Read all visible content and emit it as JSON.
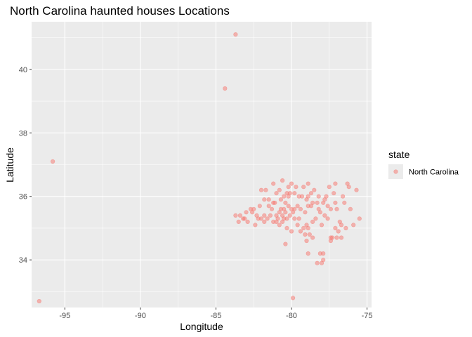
{
  "chart_data": {
    "type": "scatter",
    "title": "North Carolina haunted houses Locations",
    "xlabel": "Longitude",
    "ylabel": "Latitude",
    "xlim": [
      -97.2,
      -74.7
    ],
    "ylim": [
      32.5,
      41.5
    ],
    "x_ticks": [
      -95,
      -90,
      -85,
      -80,
      -75
    ],
    "y_ticks": [
      34,
      36,
      38,
      40
    ],
    "x_tick_labels": [
      "-95",
      "-90",
      "-85",
      "-80",
      "-75"
    ],
    "y_tick_labels": [
      "34",
      "36",
      "38",
      "40"
    ],
    "grid": true,
    "legend": {
      "title": "state",
      "entries": [
        "North Carolina"
      ],
      "position": "right"
    },
    "colors": {
      "point": "#F8766D",
      "panel": "#EBEBEB",
      "grid": "#FFFFFF"
    },
    "series": [
      {
        "name": "North Carolina",
        "points": [
          [
            -83.7,
            41.1
          ],
          [
            -84.4,
            39.4
          ],
          [
            -95.8,
            37.1
          ],
          [
            -96.7,
            32.7
          ],
          [
            -79.9,
            32.8
          ],
          [
            -80.6,
            36.5
          ],
          [
            -80.0,
            36.4
          ],
          [
            -79.7,
            36.3
          ],
          [
            -79.2,
            36.3
          ],
          [
            -78.9,
            36.4
          ],
          [
            -78.5,
            36.2
          ],
          [
            -77.5,
            36.3
          ],
          [
            -77.1,
            36.4
          ],
          [
            -76.3,
            36.4
          ],
          [
            -76.2,
            36.3
          ],
          [
            -75.7,
            36.2
          ],
          [
            -76.6,
            36.0
          ],
          [
            -77.8,
            35.9
          ],
          [
            -78.3,
            35.8
          ],
          [
            -78.6,
            35.8
          ],
          [
            -78.9,
            36.0
          ],
          [
            -79.0,
            35.9
          ],
          [
            -79.3,
            36.0
          ],
          [
            -79.8,
            36.1
          ],
          [
            -80.1,
            36.1
          ],
          [
            -80.2,
            36.0
          ],
          [
            -80.3,
            36.1
          ],
          [
            -80.5,
            36.0
          ],
          [
            -80.8,
            36.2
          ],
          [
            -81.0,
            36.1
          ],
          [
            -81.2,
            36.4
          ],
          [
            -81.7,
            36.2
          ],
          [
            -82.0,
            36.2
          ],
          [
            -81.8,
            35.9
          ],
          [
            -82.1,
            35.7
          ],
          [
            -82.5,
            35.6
          ],
          [
            -82.6,
            35.5
          ],
          [
            -83.0,
            35.5
          ],
          [
            -83.2,
            35.3
          ],
          [
            -83.4,
            35.4
          ],
          [
            -83.7,
            35.4
          ],
          [
            -83.5,
            35.2
          ],
          [
            -82.3,
            35.4
          ],
          [
            -82.0,
            35.3
          ],
          [
            -81.8,
            35.2
          ],
          [
            -81.6,
            35.3
          ],
          [
            -81.4,
            35.4
          ],
          [
            -81.0,
            35.2
          ],
          [
            -80.9,
            35.3
          ],
          [
            -80.8,
            35.5
          ],
          [
            -80.6,
            35.4
          ],
          [
            -80.4,
            35.5
          ],
          [
            -80.7,
            35.6
          ],
          [
            -80.5,
            35.3
          ],
          [
            -80.3,
            35.0
          ],
          [
            -80.0,
            34.9
          ],
          [
            -79.8,
            35.6
          ],
          [
            -79.5,
            35.3
          ],
          [
            -79.2,
            35.0
          ],
          [
            -79.0,
            35.1
          ],
          [
            -78.9,
            35.0
          ],
          [
            -78.8,
            34.8
          ],
          [
            -78.6,
            35.2
          ],
          [
            -78.4,
            35.3
          ],
          [
            -78.1,
            35.5
          ],
          [
            -77.8,
            35.4
          ],
          [
            -77.6,
            35.3
          ],
          [
            -77.4,
            35.6
          ],
          [
            -77.0,
            35.6
          ],
          [
            -76.8,
            35.2
          ],
          [
            -77.3,
            34.7
          ],
          [
            -77.4,
            34.6
          ],
          [
            -77.0,
            34.7
          ],
          [
            -76.7,
            34.7
          ],
          [
            -76.9,
            34.9
          ],
          [
            -76.4,
            35.0
          ],
          [
            -75.9,
            35.1
          ],
          [
            -75.5,
            35.3
          ],
          [
            -76.1,
            35.6
          ],
          [
            -76.5,
            35.8
          ],
          [
            -77.1,
            35.8
          ],
          [
            -77.6,
            35.7
          ],
          [
            -77.9,
            35.8
          ],
          [
            -78.2,
            35.6
          ],
          [
            -78.7,
            35.7
          ],
          [
            -78.9,
            35.7
          ],
          [
            -79.1,
            35.5
          ],
          [
            -79.4,
            35.6
          ],
          [
            -79.9,
            35.5
          ],
          [
            -80.2,
            35.7
          ],
          [
            -80.4,
            35.8
          ],
          [
            -80.7,
            35.9
          ],
          [
            -81.2,
            35.8
          ],
          [
            -81.5,
            35.7
          ],
          [
            -81.3,
            35.6
          ],
          [
            -81.0,
            35.4
          ],
          [
            -81.2,
            35.2
          ],
          [
            -80.8,
            35.1
          ],
          [
            -80.6,
            35.2
          ],
          [
            -80.3,
            35.3
          ],
          [
            -80.1,
            35.4
          ],
          [
            -79.8,
            35.3
          ],
          [
            -79.6,
            35.1
          ],
          [
            -79.4,
            34.9
          ],
          [
            -79.1,
            34.8
          ],
          [
            -79.0,
            34.6
          ],
          [
            -78.9,
            34.2
          ],
          [
            -78.3,
            33.9
          ],
          [
            -78.1,
            34.2
          ],
          [
            -77.9,
            34.2
          ],
          [
            -78.0,
            33.9
          ],
          [
            -77.9,
            34.0
          ],
          [
            -77.4,
            34.7
          ],
          [
            -77.1,
            35.0
          ],
          [
            -76.7,
            35.1
          ],
          [
            -80.4,
            34.5
          ],
          [
            -82.4,
            35.1
          ],
          [
            -83.1,
            35.3
          ],
          [
            -82.9,
            35.2
          ],
          [
            -82.7,
            35.6
          ],
          [
            -81.5,
            35.9
          ],
          [
            -81.1,
            35.8
          ],
          [
            -80.2,
            36.3
          ],
          [
            -79.5,
            36.0
          ],
          [
            -78.7,
            36.1
          ],
          [
            -78.2,
            36.0
          ],
          [
            -77.7,
            36.0
          ],
          [
            -77.2,
            36.1
          ],
          [
            -78.0,
            35.1
          ],
          [
            -78.6,
            34.7
          ],
          [
            -79.6,
            35.7
          ],
          [
            -80.0,
            35.6
          ],
          [
            -81.8,
            35.4
          ],
          [
            -82.2,
            35.3
          ],
          [
            -80.5,
            35.6
          ]
        ]
      }
    ]
  }
}
